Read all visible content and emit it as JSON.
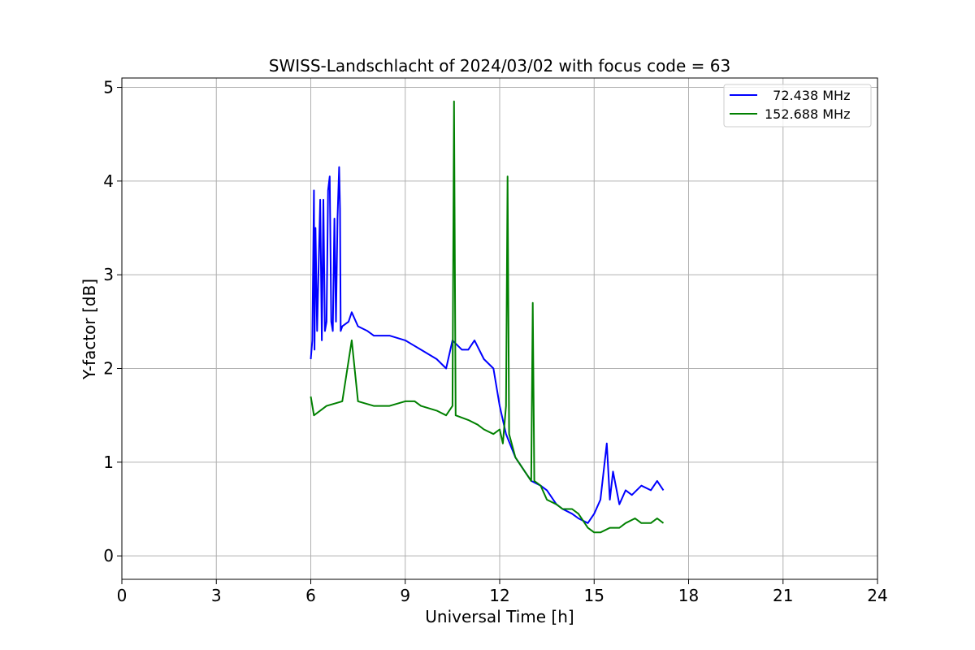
{
  "chart_data": {
    "type": "line",
    "title": "SWISS-Landschlacht of 2024/03/02 with focus code = 63",
    "xlabel": "Universal Time [h]",
    "ylabel": "Y-factor [dB]",
    "xlim": [
      0,
      24
    ],
    "ylim": [
      -0.25,
      5.1
    ],
    "xticks": [
      0,
      3,
      6,
      9,
      12,
      15,
      18,
      21,
      24
    ],
    "yticks": [
      0,
      1,
      2,
      3,
      4,
      5
    ],
    "grid": true,
    "legend_position": "top-right",
    "series": [
      {
        "name": "  72.438 MHz",
        "color": "#0000ff",
        "x": [
          6.0,
          6.05,
          6.1,
          6.12,
          6.15,
          6.2,
          6.3,
          6.35,
          6.4,
          6.45,
          6.5,
          6.55,
          6.6,
          6.65,
          6.7,
          6.75,
          6.8,
          6.85,
          6.9,
          6.93,
          6.95,
          7.0,
          7.2,
          7.3,
          7.5,
          7.8,
          8.0,
          8.5,
          9.0,
          9.5,
          10.0,
          10.3,
          10.5,
          10.8,
          11.0,
          11.2,
          11.5,
          11.8,
          12.0,
          12.2,
          12.5,
          12.8,
          13.0,
          13.3,
          13.5,
          13.8,
          14.0,
          14.3,
          14.5,
          14.8,
          15.0,
          15.2,
          15.4,
          15.5,
          15.6,
          15.8,
          16.0,
          16.2,
          16.5,
          16.8,
          17.0,
          17.2
        ],
        "y": [
          2.1,
          2.3,
          3.9,
          2.2,
          3.5,
          2.4,
          3.8,
          2.3,
          3.8,
          2.4,
          2.5,
          3.9,
          4.05,
          2.5,
          2.4,
          3.6,
          2.5,
          3.6,
          4.15,
          3.7,
          2.4,
          2.45,
          2.5,
          2.6,
          2.45,
          2.4,
          2.35,
          2.35,
          2.3,
          2.2,
          2.1,
          2.0,
          2.3,
          2.2,
          2.2,
          2.3,
          2.1,
          2.0,
          1.6,
          1.3,
          1.05,
          0.9,
          0.8,
          0.75,
          0.7,
          0.55,
          0.5,
          0.45,
          0.4,
          0.35,
          0.45,
          0.6,
          1.2,
          0.6,
          0.9,
          0.55,
          0.7,
          0.65,
          0.75,
          0.7,
          0.8,
          0.7
        ]
      },
      {
        "name": "152.688 MHz",
        "color": "#008000",
        "x": [
          6.0,
          6.1,
          6.3,
          6.5,
          7.0,
          7.3,
          7.5,
          8.0,
          8.5,
          9.0,
          9.3,
          9.5,
          10.0,
          10.3,
          10.5,
          10.55,
          10.6,
          11.0,
          11.3,
          11.5,
          11.8,
          12.0,
          12.1,
          12.2,
          12.25,
          12.3,
          12.5,
          12.8,
          13.0,
          13.05,
          13.1,
          13.3,
          13.5,
          13.8,
          14.0,
          14.3,
          14.5,
          14.8,
          15.0,
          15.2,
          15.5,
          15.8,
          16.0,
          16.3,
          16.5,
          16.8,
          17.0,
          17.2
        ],
        "y": [
          1.7,
          1.5,
          1.55,
          1.6,
          1.65,
          2.3,
          1.65,
          1.6,
          1.6,
          1.65,
          1.65,
          1.6,
          1.55,
          1.5,
          1.6,
          4.85,
          1.5,
          1.45,
          1.4,
          1.35,
          1.3,
          1.35,
          1.2,
          1.6,
          4.05,
          1.3,
          1.05,
          0.9,
          0.8,
          2.7,
          0.8,
          0.75,
          0.6,
          0.55,
          0.5,
          0.5,
          0.45,
          0.3,
          0.25,
          0.25,
          0.3,
          0.3,
          0.35,
          0.4,
          0.35,
          0.35,
          0.4,
          0.35
        ]
      }
    ]
  }
}
